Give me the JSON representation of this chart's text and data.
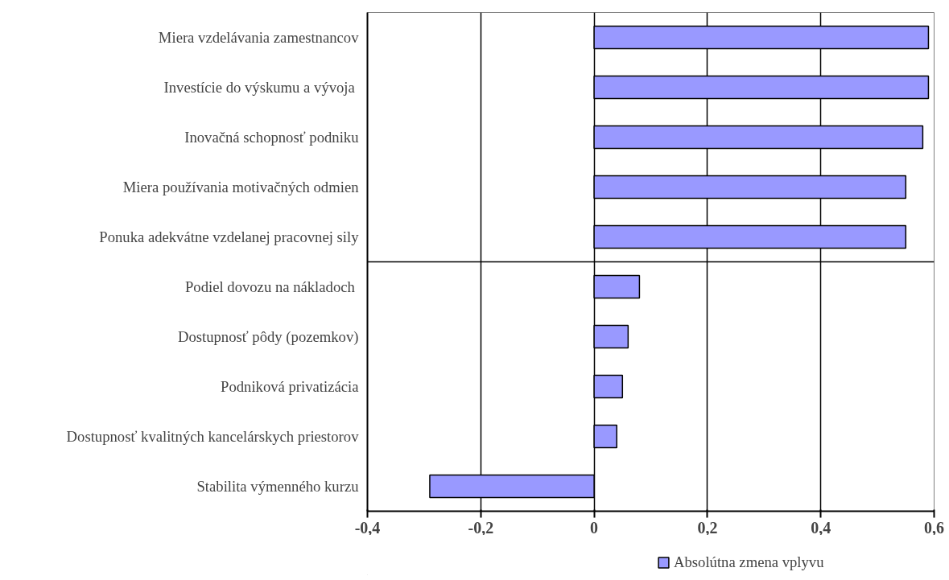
{
  "chart_data": {
    "type": "bar",
    "orientation": "horizontal",
    "categories": [
      "Miera vzdelávania zamestnancov",
      "Investície do výskumu a vývoja ",
      "Inovačná schopnosť podniku",
      "Miera používania motivačných odmien",
      "Ponuka adekvátne vzdelanej pracovnej sily",
      "Podiel dovozu na nákladoch ",
      "Dostupnosť pôdy (pozemkov)",
      "Podniková privatizácia",
      "Dostupnosť kvalitných kancelárskych priestorov",
      "Stabilita výmenného kurzu"
    ],
    "series": [
      {
        "name": "Absolútna zmena vplyvu",
        "color": "#9999ff",
        "values": [
          0.59,
          0.59,
          0.58,
          0.55,
          0.55,
          0.08,
          0.06,
          0.05,
          0.04,
          -0.29
        ]
      }
    ],
    "xlim": [
      -0.4,
      0.6
    ],
    "xticks": [
      {
        "value": -0.4,
        "label": "-0,4"
      },
      {
        "value": -0.2,
        "label": "-0,2"
      },
      {
        "value": 0,
        "label": "0"
      },
      {
        "value": 0.2,
        "label": "0,2"
      },
      {
        "value": 0.4,
        "label": "0,4"
      },
      {
        "value": 0.6,
        "label": "0,6"
      }
    ],
    "grid": "x",
    "legend": "bottom"
  }
}
